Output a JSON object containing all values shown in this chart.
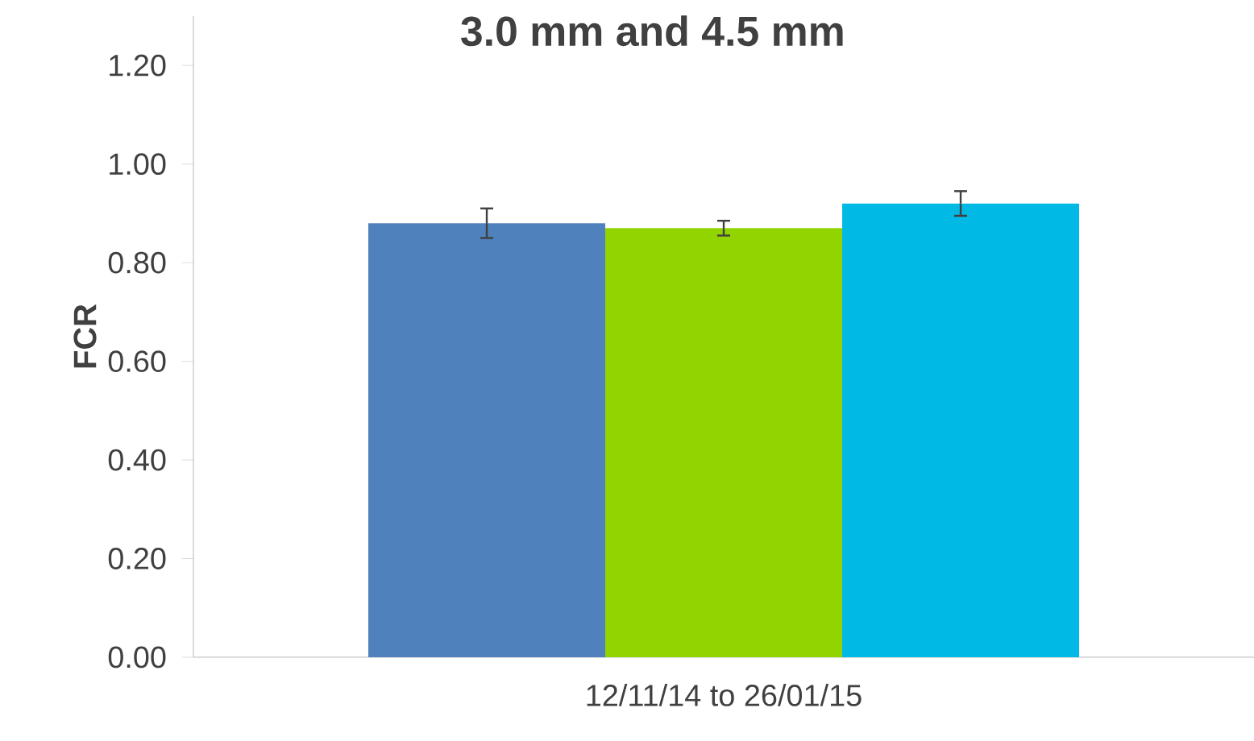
{
  "chart_data": {
    "type": "bar",
    "title": "3.0 mm and 4.5 mm",
    "ylabel": "FCR",
    "categories": [
      "12/11/14 to 26/01/15"
    ],
    "series": [
      {
        "color": "#4f81bd",
        "values": [
          0.88
        ],
        "errors": [
          0.03
        ]
      },
      {
        "color": "#92d400",
        "values": [
          0.87
        ],
        "errors": [
          0.015
        ]
      },
      {
        "color": "#00b9e4",
        "values": [
          0.92
        ],
        "errors": [
          0.025
        ]
      }
    ],
    "ylim": [
      0,
      1.3
    ],
    "yticks": [
      {
        "value": 0,
        "label": "0.00"
      },
      {
        "value": 0.2,
        "label": "0.20"
      },
      {
        "value": 0.4,
        "label": "0.40"
      },
      {
        "value": 0.6,
        "label": "0.60"
      },
      {
        "value": 0.8,
        "label": "0.80"
      },
      {
        "value": 1.0,
        "label": "1.00"
      },
      {
        "value": 1.2,
        "label": "1.20"
      }
    ],
    "grid": false
  }
}
